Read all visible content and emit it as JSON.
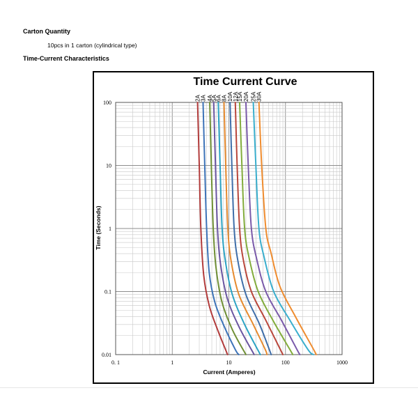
{
  "carton": {
    "title": "Carton Quantity",
    "text": "10pcs in 1 carton (cylindrical type)"
  },
  "tc_section": {
    "title": "Time-Current Characteristics"
  },
  "chart_data": {
    "type": "line",
    "title": "Time Current Curve",
    "xlabel": "Current (Amperes)",
    "ylabel": "Time (Seconds)",
    "x_scale": "log",
    "y_scale": "log",
    "xlim": [
      0.1,
      1000
    ],
    "ylim": [
      0.01,
      100
    ],
    "x_ticks": [
      {
        "value": 0.1,
        "label": "0. 1"
      },
      {
        "value": 1,
        "label": "1"
      },
      {
        "value": 10,
        "label": "10"
      },
      {
        "value": 100,
        "label": "100"
      },
      {
        "value": 1000,
        "label": "1000"
      }
    ],
    "y_ticks": [
      {
        "value": 100,
        "label": "100"
      },
      {
        "value": 10,
        "label": "10"
      },
      {
        "value": 1,
        "label": "1"
      },
      {
        "value": 0.1,
        "label": "0.1"
      },
      {
        "value": 0.01,
        "label": "0.01"
      }
    ],
    "grid": true,
    "series": [
      {
        "name": "2A",
        "color": "#b23b3b",
        "points": [
          [
            2.8,
            100
          ],
          [
            3.0,
            10
          ],
          [
            3.2,
            1
          ],
          [
            3.6,
            0.18
          ],
          [
            4.5,
            0.06
          ],
          [
            6.3,
            0.025
          ],
          [
            9.5,
            0.01
          ]
        ]
      },
      {
        "name": "3A",
        "color": "#3d73b8",
        "points": [
          [
            3.5,
            100
          ],
          [
            3.75,
            10
          ],
          [
            4.05,
            1
          ],
          [
            4.5,
            0.2
          ],
          [
            5.6,
            0.07
          ],
          [
            8,
            0.03
          ],
          [
            13,
            0.012
          ],
          [
            15,
            0.01
          ]
        ]
      },
      {
        "name": "4A",
        "color": "#6f8f35",
        "points": [
          [
            4.6,
            100
          ],
          [
            4.9,
            10
          ],
          [
            5.3,
            1
          ],
          [
            5.9,
            0.25
          ],
          [
            7.5,
            0.07
          ],
          [
            11.5,
            0.025
          ],
          [
            20,
            0.01
          ]
        ]
      },
      {
        "name": "5A",
        "color": "#6a55a0",
        "points": [
          [
            5.4,
            100
          ],
          [
            5.8,
            10
          ],
          [
            6.3,
            1
          ],
          [
            7.1,
            0.28
          ],
          [
            9.3,
            0.08
          ],
          [
            15,
            0.028
          ],
          [
            28,
            0.01
          ]
        ]
      },
      {
        "name": "6A",
        "color": "#2ba3c4",
        "points": [
          [
            6.5,
            100
          ],
          [
            7.0,
            10
          ],
          [
            7.6,
            1
          ],
          [
            8.7,
            0.3
          ],
          [
            11.5,
            0.09
          ],
          [
            19,
            0.03
          ],
          [
            36,
            0.01
          ]
        ]
      },
      {
        "name": "8A",
        "color": "#e68a2e",
        "points": [
          [
            8.2,
            100
          ],
          [
            8.8,
            10
          ],
          [
            9.6,
            1
          ],
          [
            11,
            0.3
          ],
          [
            15,
            0.09
          ],
          [
            27,
            0.03
          ],
          [
            44,
            0.012
          ],
          [
            47,
            0.01
          ]
        ]
      },
      {
        "name": "10A",
        "color": "#3f6ea9",
        "points": [
          [
            10.5,
            100
          ],
          [
            11.3,
            10
          ],
          [
            12.4,
            1
          ],
          [
            14.5,
            0.3
          ],
          [
            20,
            0.09
          ],
          [
            35,
            0.03
          ],
          [
            56,
            0.01
          ]
        ]
      },
      {
        "name": "12A",
        "color": "#b9463b",
        "points": [
          [
            13,
            100
          ],
          [
            14,
            10
          ],
          [
            15.5,
            1
          ],
          [
            18,
            0.32
          ],
          [
            25,
            0.1
          ],
          [
            45,
            0.035
          ],
          [
            90,
            0.01
          ]
        ]
      },
      {
        "name": "15A",
        "color": "#82ac3c",
        "points": [
          [
            15.5,
            100
          ],
          [
            17,
            10
          ],
          [
            19,
            1
          ],
          [
            23,
            0.33
          ],
          [
            33,
            0.1
          ],
          [
            60,
            0.035
          ],
          [
            120,
            0.012
          ],
          [
            135,
            0.01
          ]
        ]
      },
      {
        "name": "20A",
        "color": "#7a5aaa",
        "points": [
          [
            20,
            100
          ],
          [
            22,
            10
          ],
          [
            25,
            1
          ],
          [
            31,
            0.33
          ],
          [
            45,
            0.1
          ],
          [
            85,
            0.035
          ],
          [
            160,
            0.012
          ],
          [
            180,
            0.01
          ]
        ]
      },
      {
        "name": "25A",
        "color": "#39aecd",
        "points": [
          [
            27,
            100
          ],
          [
            30,
            10
          ],
          [
            34,
            1
          ],
          [
            42,
            0.35
          ],
          [
            62,
            0.1
          ],
          [
            120,
            0.035
          ],
          [
            250,
            0.012
          ],
          [
            310,
            0.01
          ]
        ]
      },
      {
        "name": "30A",
        "color": "#ef8c2f",
        "points": [
          [
            34,
            100
          ],
          [
            38,
            10
          ],
          [
            45,
            1
          ],
          [
            56,
            0.4
          ],
          [
            80,
            0.12
          ],
          [
            150,
            0.04
          ],
          [
            300,
            0.013
          ],
          [
            350,
            0.01
          ]
        ]
      }
    ]
  }
}
